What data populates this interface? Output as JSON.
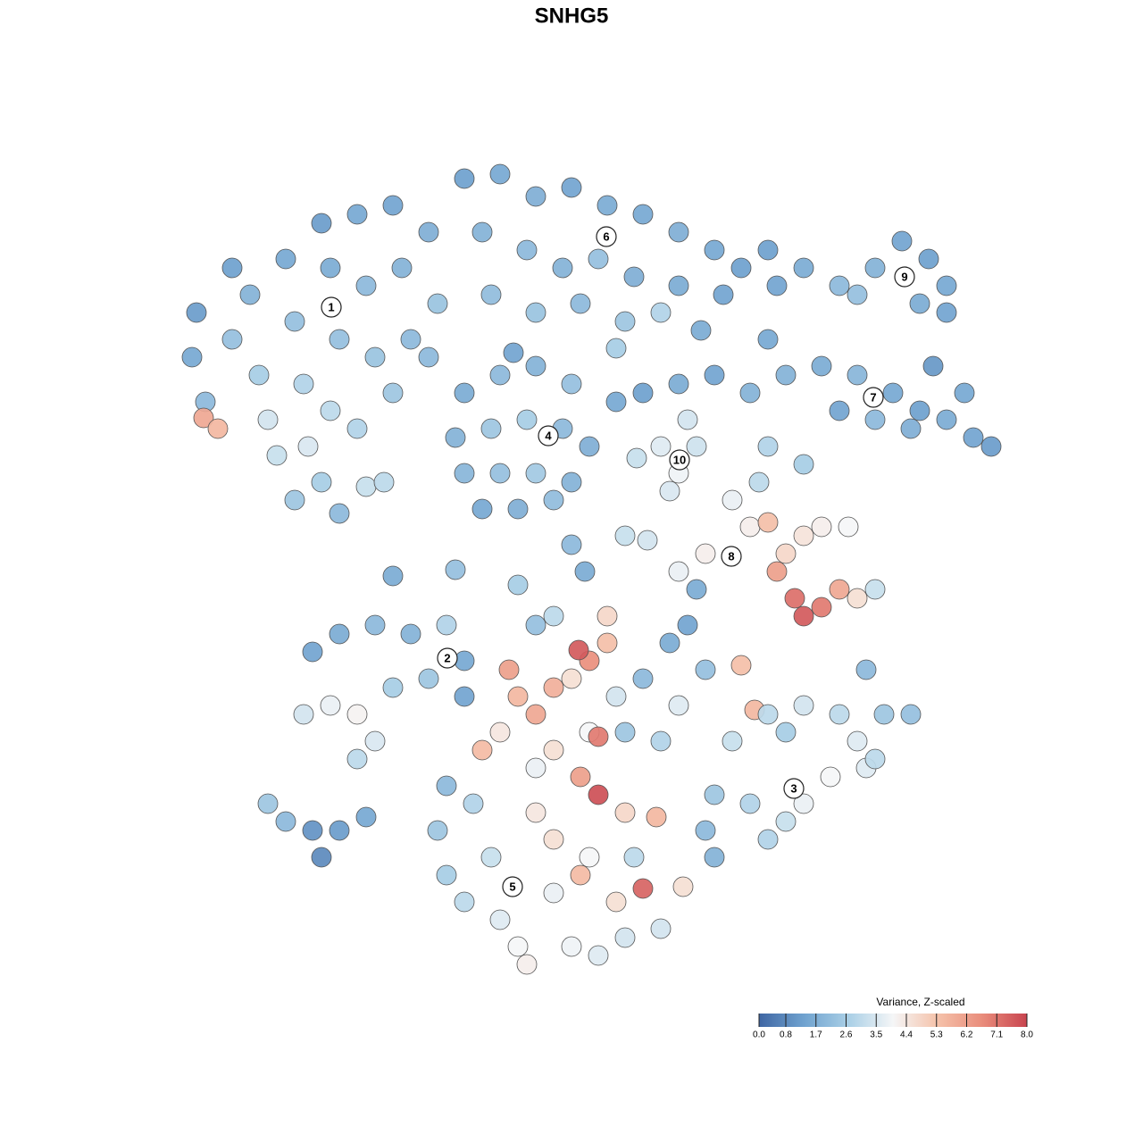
{
  "chart_data": {
    "type": "scatter",
    "title": "SNHG5",
    "xlim": [
      0,
      128
    ],
    "ylim": [
      0,
      128
    ],
    "x": [
      22,
      21.5,
      23,
      22.8,
      24.4,
      26,
      26,
      28,
      29,
      30,
      31,
      32,
      33,
      34,
      34.5,
      33,
      36,
      37,
      38,
      37,
      36,
      38,
      40,
      41,
      42,
      40,
      41,
      44,
      45,
      46,
      44,
      43,
      48,
      49,
      48,
      52,
      56,
      60,
      64,
      68,
      72,
      76,
      80,
      83,
      54,
      59,
      63,
      67,
      71,
      76,
      81,
      55,
      60,
      65,
      70,
      69,
      74,
      78.5,
      86,
      87,
      90,
      94,
      98,
      101,
      104,
      106,
      106,
      103,
      96,
      104.5,
      86,
      88,
      92,
      96,
      100,
      103,
      106,
      109,
      111,
      102,
      94,
      98,
      108,
      69,
      72,
      76,
      80,
      84,
      52,
      56,
      60,
      64,
      51,
      55,
      59,
      63,
      66,
      52,
      56,
      60,
      64,
      54,
      58,
      62,
      57.5,
      74,
      76,
      78,
      77,
      75,
      71.3,
      82,
      84,
      86,
      88,
      90,
      92,
      95,
      87,
      89,
      90,
      92,
      94,
      96,
      98,
      85,
      86,
      90,
      79,
      76,
      44,
      51,
      58,
      65.5,
      64,
      70,
      72.5,
      35,
      38,
      42,
      46,
      50,
      52,
      52,
      34,
      37,
      40,
      42,
      40,
      44,
      48,
      30,
      32,
      35,
      36,
      38,
      41,
      57,
      58,
      60,
      56,
      54,
      62,
      64,
      66,
      64.8,
      68,
      69,
      66,
      67,
      62,
      60,
      65,
      67,
      70,
      72,
      75,
      77,
      79,
      76,
      74,
      60,
      62,
      68,
      78,
      83,
      84.5,
      82,
      86,
      88,
      90,
      94,
      96,
      99,
      102,
      97,
      93,
      90,
      88,
      84,
      80,
      79,
      80,
      86,
      97,
      98,
      50,
      49,
      50,
      52,
      55,
      56,
      58,
      59,
      62,
      62,
      64,
      67,
      70,
      69,
      72,
      74,
      66,
      65,
      60,
      70,
      73.5,
      76.5,
      53,
      71
    ],
    "y": [
      93,
      88,
      83,
      81.2,
      80,
      98,
      90,
      95,
      86,
      81,
      77,
      99,
      92,
      85,
      78,
      72,
      103,
      98,
      90,
      82,
      74,
      70.5,
      104,
      96,
      88,
      80,
      73.5,
      105,
      98,
      90,
      84,
      74,
      102,
      94,
      88,
      108,
      108.5,
      106,
      107,
      105,
      104,
      102,
      100,
      98,
      102,
      100,
      98,
      99,
      97,
      96,
      95,
      95,
      93,
      94,
      92,
      89,
      93,
      91,
      100,
      96,
      98,
      96,
      98,
      101,
      99,
      96,
      93,
      94,
      95,
      87,
      90,
      86,
      87,
      86,
      84,
      82,
      81,
      79,
      78,
      80,
      82,
      81,
      84,
      83,
      84,
      85,
      86,
      84,
      84,
      86,
      87,
      85,
      79,
      80,
      81,
      80,
      78,
      75,
      75,
      75,
      74,
      71,
      71,
      72,
      88.5,
      78,
      75,
      78,
      81,
      73,
      76.7,
      72,
      69,
      69.5,
      66,
      68,
      69,
      69,
      64,
      61,
      59,
      60,
      62,
      61,
      62,
      74,
      78,
      76,
      66,
      64,
      63.5,
      64.2,
      62.5,
      64,
      67,
      68,
      67.5,
      55,
      57,
      58,
      57,
      58,
      54,
      50,
      48,
      49,
      48,
      45,
      43,
      51,
      52,
      38,
      36,
      35,
      32,
      35,
      36.5,
      53,
      50,
      48,
      46,
      44,
      51,
      52,
      54,
      55.2,
      56,
      50,
      46,
      45.5,
      44,
      42,
      41,
      39,
      46,
      52,
      56,
      58,
      53,
      49,
      45,
      58,
      59,
      59,
      62,
      53.5,
      48.5,
      45,
      48,
      46,
      49,
      48,
      45,
      48,
      48,
      42,
      41,
      38,
      36,
      38,
      39,
      35,
      32,
      34,
      53,
      43,
      40,
      35,
      30,
      27,
      32,
      25,
      22,
      20,
      28,
      34,
      22,
      21,
      23,
      27,
      28.5,
      24,
      32,
      30,
      37,
      37,
      36.5,
      28.7,
      38,
      32
    ],
    "values": [
      1.2,
      1.5,
      2,
      6,
      5.6,
      1.3,
      2.2,
      1.8,
      2.6,
      3.4,
      3.2,
      1.5,
      2.2,
      2.8,
      3.5,
      2.4,
      1.2,
      1.6,
      2.2,
      3,
      2.6,
      2,
      1.5,
      2,
      2.3,
      2.8,
      3.2,
      1.4,
      1.8,
      2,
      2.4,
      3,
      1.7,
      2.3,
      2,
      1.3,
      1.5,
      1.7,
      1.4,
      1.6,
      1.5,
      1.7,
      1.5,
      1.3,
      1.8,
      2,
      1.8,
      2.2,
      1.7,
      1.6,
      1.4,
      2.1,
      2.3,
      2,
      2.4,
      2.6,
      2.8,
      1.6,
      1.3,
      1.4,
      1.6,
      2,
      1.8,
      1.4,
      1.3,
      1.5,
      1.4,
      1.6,
      2.2,
      1.1,
      1.5,
      1.8,
      1.6,
      1.9,
      1.5,
      1.3,
      1.6,
      1.4,
      1.2,
      1.7,
      1.4,
      2,
      1.5,
      1.5,
      1.3,
      1.6,
      1.4,
      1.8,
      1.6,
      2,
      1.8,
      2.2,
      1.8,
      2.4,
      2.6,
      2,
      1.7,
      1.9,
      2.2,
      2.5,
      1.8,
      1.5,
      1.7,
      2.1,
      1.4,
      3.6,
      3.9,
      3.3,
      3.4,
      3.5,
      3.2,
      3.8,
      4.2,
      5.4,
      4.8,
      4.5,
      4.2,
      4,
      6.2,
      7.2,
      7.6,
      7,
      6,
      4.6,
      3.2,
      3,
      2.8,
      2.6,
      4.2,
      3.8,
      1.6,
      2.2,
      2.6,
      1.6,
      2,
      3.2,
      3.4,
      1.4,
      1.6,
      2,
      1.8,
      2.8,
      1.5,
      1.4,
      3.4,
      3.8,
      4.1,
      3.5,
      3,
      2.6,
      2.4,
      2.4,
      2,
      1,
      0.8,
      1.2,
      1.5,
      6.2,
      5.6,
      6,
      4.4,
      5.5,
      5.8,
      4.6,
      6.6,
      7.6,
      5.4,
      3.4,
      4,
      7,
      4.6,
      3.8,
      6.2,
      7.8,
      2.4,
      2,
      1.6,
      1.4,
      2.2,
      3.6,
      2.8,
      2.2,
      3,
      4.8,
      1.6,
      5.4,
      5.6,
      3.2,
      3,
      2.6,
      3.4,
      3,
      3.6,
      2.4,
      2.2,
      3.6,
      4,
      3.8,
      3.2,
      2.8,
      2.4,
      2,
      1.8,
      2.8,
      2,
      3,
      2,
      2.4,
      2.6,
      3,
      3.2,
      3.6,
      4,
      4.2,
      3.8,
      4.6,
      3.9,
      3.6,
      3.4,
      4.6,
      7.4,
      3.4,
      4,
      5.5,
      4.4,
      4.8,
      5.6,
      4.6,
      2.8,
      3
    ],
    "clusters": {
      "labels": [
        "1",
        "2",
        "3",
        "4",
        "5",
        "6",
        "7",
        "8",
        "9",
        "10"
      ],
      "x": [
        37.1,
        50.1,
        88.9,
        61.4,
        57.4,
        67.9,
        97.8,
        81.9,
        101.3,
        76.1
      ],
      "y": [
        93.6,
        54.3,
        39.7,
        79.2,
        28.7,
        101.5,
        83.5,
        65.7,
        97,
        76.5
      ]
    },
    "colorbar": {
      "title": "Variance, Z-scaled",
      "lim": [
        0,
        8
      ],
      "ticks": [
        {
          "value": 0,
          "label": "0.0"
        },
        0.8,
        1.7,
        2.6,
        3.5,
        4.4,
        5.3,
        6.2,
        7.1,
        {
          "value": 8,
          "label": "8.0"
        }
      ],
      "colors": [
        "#3f66a3",
        "#6fa2cf",
        "#a9cfe6",
        "#f5f6f7",
        "#f5c2aa",
        "#e98c7b",
        "#c8444f"
      ]
    }
  }
}
